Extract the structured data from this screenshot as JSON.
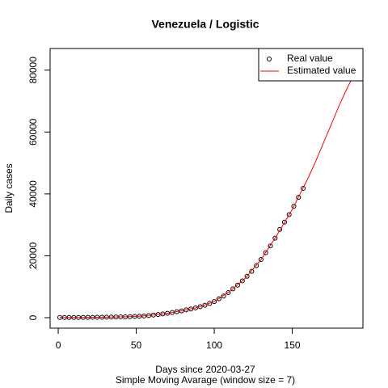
{
  "chart_data": {
    "type": "scatter",
    "title": "Venezuela / Logistic",
    "x_label": "Days since 2020-03-27",
    "subtitle": "Simple Moving Avarage (window size = 7)",
    "y_label": "Daily cases",
    "xlim": [
      -5.2,
      195.3
    ],
    "ylim": [
      -3400,
      87000
    ],
    "xticks": [
      0,
      50,
      100,
      150
    ],
    "yticks": [
      0,
      20000,
      40000,
      60000,
      80000
    ],
    "grid": false,
    "legend": "top-right",
    "series": [
      {
        "name": "Real value",
        "color": "#000000",
        "style": "points",
        "x": [
          1,
          4,
          7,
          10,
          13,
          16,
          19,
          22,
          25,
          28,
          31,
          34,
          37,
          40,
          43,
          46,
          49,
          52,
          55,
          58,
          61,
          64,
          67,
          70,
          73,
          76,
          79,
          82,
          85,
          88,
          91,
          94,
          97,
          100,
          103,
          106,
          109,
          112,
          115,
          118,
          121,
          124,
          127,
          130,
          133,
          136,
          139,
          142,
          145,
          148,
          151,
          154,
          157
        ],
        "values": [
          50,
          55,
          60,
          65,
          75,
          85,
          95,
          110,
          125,
          140,
          160,
          180,
          210,
          250,
          290,
          330,
          380,
          460,
          560,
          690,
          850,
          1000,
          1200,
          1400,
          1650,
          1920,
          2200,
          2500,
          2820,
          3160,
          3550,
          4000,
          4600,
          5200,
          6100,
          7000,
          8100,
          9300,
          10500,
          11900,
          13400,
          15000,
          16800,
          18800,
          21000,
          23200,
          25700,
          28500,
          30900,
          33300,
          36000,
          38900,
          41800
        ]
      },
      {
        "name": "Estimated value",
        "color": "#ff0000",
        "style": "line",
        "x": [
          1,
          10,
          20,
          30,
          40,
          50,
          60,
          70,
          80,
          90,
          100,
          110,
          120,
          130,
          140,
          150,
          160,
          165,
          170,
          175,
          180,
          185,
          188
        ],
        "values": [
          50,
          65,
          100,
          150,
          250,
          400,
          800,
          1400,
          2300,
          3400,
          5200,
          8500,
          12800,
          18800,
          26500,
          35000,
          45000,
          50500,
          56500,
          62500,
          68500,
          74000,
          77000
        ]
      }
    ]
  }
}
